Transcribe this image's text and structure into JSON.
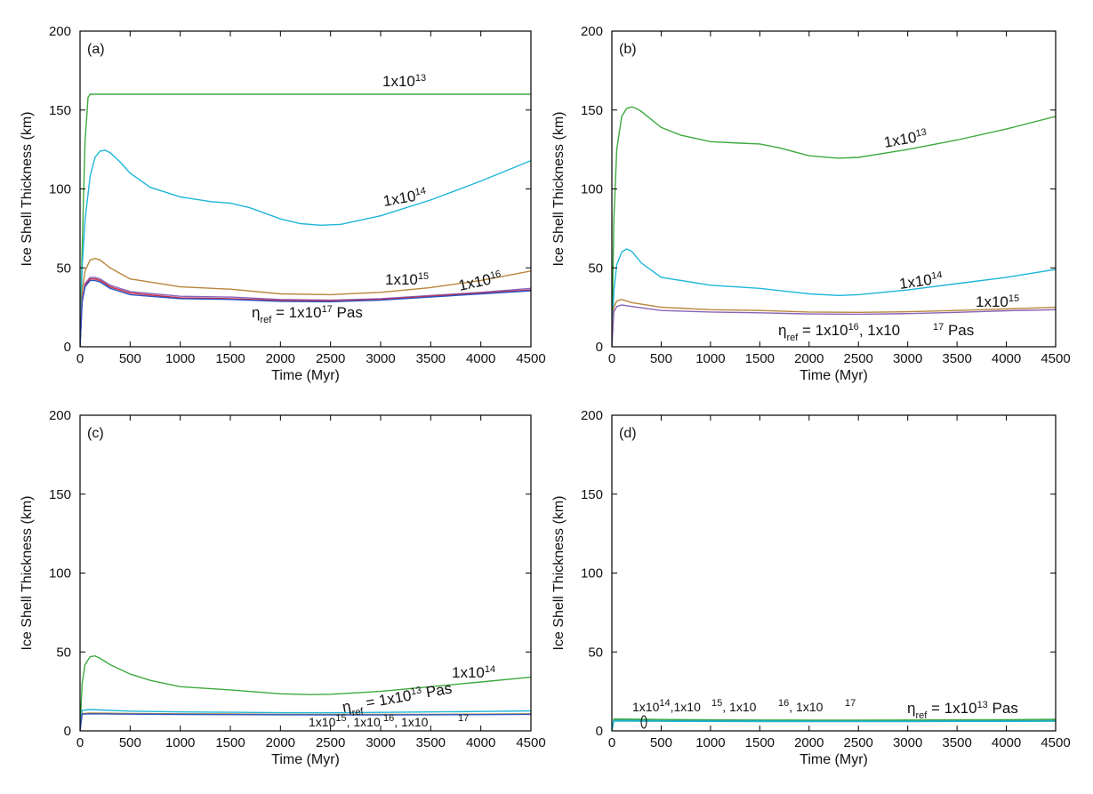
{
  "colors": {
    "green": "#3daa3d",
    "cyan": "#1fb6d8",
    "brown": "#b8863b",
    "purple": "#8a63b8",
    "red": "#cc2a44",
    "blue": "#2b55c4",
    "teal": "#25a890"
  },
  "chart_data": [
    {
      "type": "line",
      "panel_label": "(a)",
      "xlabel": "Time (Myr)",
      "ylabel": "Ice Shell Thickness (km)",
      "xlim": [
        0,
        4500
      ],
      "ylim": [
        0,
        200
      ],
      "x_ticks": [
        0,
        500,
        1000,
        1500,
        2000,
        2500,
        3000,
        3500,
        4000,
        4500
      ],
      "y_ticks": [
        0,
        50,
        100,
        150,
        200
      ],
      "grid": false,
      "annotations": [
        {
          "text": "1x10",
          "sup": "13",
          "sub": "",
          "tail": ""
        },
        {
          "text": "1x10",
          "sup": "14",
          "sub": "",
          "tail": ""
        },
        {
          "text": "1x10",
          "sup": "15",
          "sub": "",
          "tail": ""
        },
        {
          "text": "1x10",
          "sup": "16",
          "sub": "",
          "tail": ""
        },
        {
          "text": "η",
          "sub": "ref",
          "mid": " = 1x10",
          "sup": "17",
          "tail": " Pas"
        }
      ],
      "series": [
        {
          "color_key": "green",
          "x": [
            0,
            20,
            50,
            80,
            100,
            150,
            500,
            1000,
            1500,
            2000,
            2500,
            3000,
            3500,
            4000,
            4500
          ],
          "y": [
            0,
            60,
            130,
            158,
            160,
            160,
            160,
            160,
            160,
            160,
            160,
            160,
            160,
            160,
            160
          ]
        },
        {
          "color_key": "cyan",
          "x": [
            0,
            20,
            50,
            100,
            150,
            200,
            250,
            300,
            400,
            500,
            700,
            1000,
            1300,
            1500,
            1700,
            2000,
            2200,
            2400,
            2600,
            3000,
            3500,
            4000,
            4500
          ],
          "y": [
            0,
            50,
            80,
            108,
            120,
            124,
            124.5,
            123,
            117,
            110,
            101,
            95,
            92,
            91,
            88,
            81,
            78,
            77,
            77.5,
            83,
            93,
            105,
            118
          ]
        },
        {
          "color_key": "brown",
          "x": [
            0,
            20,
            50,
            100,
            150,
            200,
            300,
            500,
            1000,
            1500,
            2000,
            2500,
            3000,
            3500,
            4000,
            4500
          ],
          "y": [
            0,
            35,
            48,
            55,
            56,
            55,
            50,
            43,
            38,
            36.5,
            33.5,
            33,
            34.5,
            37.5,
            42,
            48
          ]
        },
        {
          "color_key": "purple",
          "x": [
            0,
            20,
            50,
            100,
            150,
            200,
            300,
            500,
            1000,
            1500,
            2000,
            2500,
            3000,
            3500,
            4000,
            4500
          ],
          "y": [
            0,
            30,
            40,
            44,
            44,
            43,
            39,
            35,
            32,
            31.5,
            30,
            29.5,
            30.5,
            32.5,
            34.5,
            37
          ]
        },
        {
          "color_key": "red",
          "x": [
            0,
            20,
            50,
            100,
            150,
            200,
            300,
            500,
            1000,
            1500,
            2000,
            2500,
            3000,
            3500,
            4000,
            4500
          ],
          "y": [
            0,
            29,
            39,
            43,
            43,
            42,
            38,
            34,
            31,
            30.5,
            29.3,
            29,
            30,
            32,
            34,
            36
          ]
        },
        {
          "color_key": "blue",
          "x": [
            0,
            20,
            50,
            100,
            150,
            200,
            300,
            500,
            1000,
            1500,
            2000,
            2500,
            3000,
            3500,
            4000,
            4500
          ],
          "y": [
            0,
            28,
            38,
            42,
            42,
            41,
            37,
            33,
            30.5,
            30,
            28.8,
            28.5,
            29.5,
            31.5,
            33.5,
            35.5
          ]
        }
      ]
    },
    {
      "type": "line",
      "panel_label": "(b)",
      "xlabel": "Time (Myr)",
      "ylabel": "Ice Shell Thickness (km)",
      "xlim": [
        0,
        4500
      ],
      "ylim": [
        0,
        200
      ],
      "x_ticks": [
        0,
        500,
        1000,
        1500,
        2000,
        2500,
        3000,
        3500,
        4000,
        4500
      ],
      "y_ticks": [
        0,
        50,
        100,
        150,
        200
      ],
      "grid": false,
      "annotations": [
        {
          "text": "1x10",
          "sup": "13",
          "sub": "",
          "tail": ""
        },
        {
          "text": "1x10",
          "sup": "14",
          "sub": "",
          "tail": ""
        },
        {
          "text": "1x10",
          "sup": "15",
          "sub": "",
          "tail": ""
        },
        {
          "text": "η",
          "sub": "ref",
          "mid": " = 1x10",
          "sup": "16",
          "tail": ", 1x10"
        },
        {
          "text": "",
          "sup": "17",
          "sub": "",
          "tail": " Pas"
        }
      ],
      "series": [
        {
          "color_key": "green",
          "x": [
            0,
            20,
            50,
            100,
            150,
            200,
            250,
            300,
            400,
            500,
            700,
            1000,
            1300,
            1500,
            1700,
            2000,
            2300,
            2500,
            3000,
            3500,
            4000,
            4500
          ],
          "y": [
            0,
            80,
            125,
            146,
            151,
            152,
            151,
            149,
            144,
            139,
            134,
            130,
            129,
            128.5,
            126,
            121,
            119.5,
            120,
            125,
            131,
            138,
            146
          ]
        },
        {
          "color_key": "cyan",
          "x": [
            0,
            20,
            50,
            100,
            150,
            200,
            300,
            500,
            1000,
            1500,
            2000,
            2300,
            2500,
            3000,
            3500,
            4000,
            4500
          ],
          "y": [
            0,
            35,
            52,
            60,
            62,
            60.5,
            53,
            44,
            39,
            37,
            33.5,
            32.5,
            33,
            36,
            40,
            44,
            49
          ]
        },
        {
          "color_key": "brown",
          "x": [
            0,
            20,
            50,
            100,
            200,
            500,
            1000,
            1500,
            2000,
            2500,
            3000,
            3500,
            4000,
            4500
          ],
          "y": [
            0,
            25,
            29,
            30,
            28,
            25,
            23.5,
            23,
            22,
            21.8,
            22.2,
            23,
            24,
            25
          ]
        },
        {
          "color_key": "purple",
          "x": [
            0,
            20,
            50,
            100,
            200,
            500,
            1000,
            1500,
            2000,
            2500,
            3000,
            3500,
            4000,
            4500
          ],
          "y": [
            0,
            22,
            25.5,
            26.5,
            25.5,
            23,
            22,
            21.5,
            20.8,
            20.6,
            21,
            21.8,
            22.8,
            23.5
          ]
        }
      ]
    },
    {
      "type": "line",
      "panel_label": "(c)",
      "xlabel": "Time (Myr)",
      "ylabel": "Ice Shell Thickness (km)",
      "xlim": [
        0,
        4500
      ],
      "ylim": [
        0,
        200
      ],
      "x_ticks": [
        0,
        500,
        1000,
        1500,
        2000,
        2500,
        3000,
        3500,
        4000,
        4500
      ],
      "y_ticks": [
        0,
        50,
        100,
        150,
        200
      ],
      "grid": false,
      "annotations": [
        {
          "text": "η",
          "sub": "ref",
          "mid": " = 1x10",
          "sup": "13",
          "tail": " Pas"
        },
        {
          "text": "1x10",
          "sup": "14",
          "sub": "",
          "tail": ""
        },
        {
          "text": "1x10",
          "sup": "15",
          "sub": "",
          "tail": ", 1x10"
        },
        {
          "text": "",
          "sup": "16",
          "sub": "",
          "tail": ", 1x10"
        },
        {
          "text": "",
          "sup": "17",
          "sub": "",
          "tail": ""
        }
      ],
      "series": [
        {
          "color_key": "green",
          "x": [
            0,
            20,
            50,
            100,
            150,
            200,
            300,
            500,
            700,
            1000,
            1500,
            2000,
            2300,
            2500,
            3000,
            3500,
            4000,
            4500
          ],
          "y": [
            0,
            30,
            42,
            47,
            47.5,
            46,
            42,
            36,
            32,
            28,
            26,
            23.5,
            23,
            23.2,
            25,
            28,
            31,
            34
          ]
        },
        {
          "color_key": "cyan",
          "x": [
            0,
            20,
            100,
            500,
            1000,
            1500,
            2000,
            2500,
            3000,
            3500,
            4000,
            4500
          ],
          "y": [
            0,
            13,
            13.5,
            12.5,
            12,
            11.8,
            11.5,
            11.5,
            11.7,
            12,
            12.3,
            12.7
          ]
        },
        {
          "color_key": "brown",
          "x": [
            0,
            20,
            100,
            500,
            1000,
            1500,
            2000,
            2500,
            3000,
            3500,
            4000,
            4500
          ],
          "y": [
            0,
            11,
            11.3,
            11,
            10.8,
            10.7,
            10.5,
            10.4,
            10.4,
            10.5,
            10.6,
            10.8
          ]
        },
        {
          "color_key": "blue",
          "x": [
            0,
            20,
            100,
            500,
            1000,
            1500,
            2000,
            2500,
            3000,
            3500,
            4000,
            4500
          ],
          "y": [
            0,
            10.6,
            10.8,
            10.6,
            10.4,
            10.3,
            10.2,
            10.1,
            10.1,
            10.2,
            10.3,
            10.5
          ]
        }
      ]
    },
    {
      "type": "line",
      "panel_label": "(d)",
      "xlabel": "Time (Myr)",
      "ylabel": "Ice Shell Thickness (km)",
      "xlim": [
        0,
        4500
      ],
      "ylim": [
        0,
        200
      ],
      "x_ticks": [
        0,
        500,
        1000,
        1500,
        2000,
        2500,
        3000,
        3500,
        4000,
        4500
      ],
      "y_ticks": [
        0,
        50,
        100,
        150,
        200
      ],
      "grid": false,
      "annotations": [
        {
          "text": "1x10",
          "sup": "14",
          "sub": "",
          "tail": ",1x10"
        },
        {
          "text": "",
          "sup": "15",
          "sub": "",
          "tail": ", 1x10"
        },
        {
          "text": "",
          "sup": "16",
          "sub": "",
          "tail": ", 1x10"
        },
        {
          "text": "",
          "sup": "17",
          "sub": "",
          "tail": ""
        },
        {
          "text": "η",
          "sub": "ref",
          "mid": " = 1x10",
          "sup": "13",
          "tail": " Pas"
        }
      ],
      "series": [
        {
          "color_key": "green",
          "x": [
            0,
            20,
            100,
            500,
            1000,
            1500,
            2000,
            2500,
            3000,
            3500,
            4000,
            4500
          ],
          "y": [
            0,
            7.5,
            7.5,
            7.2,
            7,
            6.9,
            6.8,
            6.8,
            6.9,
            7,
            7.1,
            7.3
          ]
        },
        {
          "color_key": "teal",
          "x": [
            0,
            20,
            100,
            500,
            1000,
            1500,
            2000,
            2500,
            3000,
            3500,
            4000,
            4500
          ],
          "y": [
            0,
            6.8,
            6.8,
            6.6,
            6.5,
            6.4,
            6.3,
            6.3,
            6.3,
            6.4,
            6.5,
            6.6
          ]
        },
        {
          "color_key": "cyan",
          "x": [
            0,
            20,
            100,
            500,
            1000,
            1500,
            2000,
            2500,
            3000,
            3500,
            4000,
            4500
          ],
          "y": [
            0,
            6.2,
            6.2,
            6.1,
            6,
            5.9,
            5.9,
            5.9,
            5.9,
            6,
            6,
            6.1
          ]
        }
      ]
    }
  ]
}
